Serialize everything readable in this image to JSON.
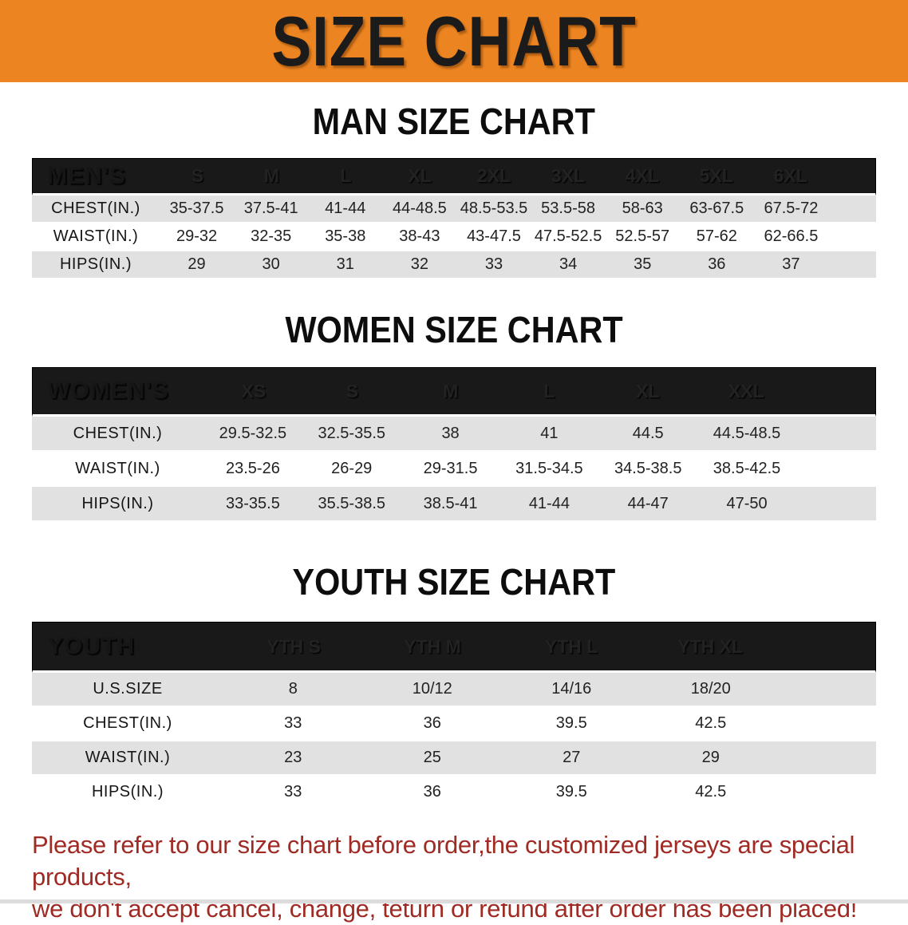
{
  "banner": {
    "title": "SIZE CHART"
  },
  "colors": {
    "banner_bg": "#EC8521",
    "header_bar": "#191919",
    "stripe": "#E1E1E1",
    "disclaimer": "#A02A24"
  },
  "man": {
    "heading": "MAN SIZE CHART",
    "corner_label": "MEN'S",
    "sizes": [
      "S",
      "M",
      "L",
      "XL",
      "2XL",
      "3XL",
      "4XL",
      "5XL",
      "6XL"
    ],
    "rows": [
      {
        "label": "CHEST(IN.)",
        "values": [
          "35-37.5",
          "37.5-41",
          "41-44",
          "44-48.5",
          "48.5-53.5",
          "53.5-58",
          "58-63",
          "63-67.5",
          "67.5-72"
        ]
      },
      {
        "label": "WAIST(IN.)",
        "values": [
          "29-32",
          "32-35",
          "35-38",
          "38-43",
          "43-47.5",
          "47.5-52.5",
          "52.5-57",
          "57-62",
          "62-66.5"
        ]
      },
      {
        "label": "HIPS(IN.)",
        "values": [
          "29",
          "30",
          "31",
          "32",
          "33",
          "34",
          "35",
          "36",
          "37"
        ]
      }
    ]
  },
  "women": {
    "heading": "WOMEN SIZE CHART",
    "corner_label": "WOMEN'S",
    "sizes": [
      "XS",
      "S",
      "M",
      "L",
      "XL",
      "XXL"
    ],
    "rows": [
      {
        "label": "CHEST(IN.)",
        "values": [
          "29.5-32.5",
          "32.5-35.5",
          "38",
          "41",
          "44.5",
          "44.5-48.5"
        ]
      },
      {
        "label": "WAIST(IN.)",
        "values": [
          "23.5-26",
          "26-29",
          "29-31.5",
          "31.5-34.5",
          "34.5-38.5",
          "38.5-42.5"
        ]
      },
      {
        "label": "HIPS(IN.)",
        "values": [
          "33-35.5",
          "35.5-38.5",
          "38.5-41",
          "41-44",
          "44-47",
          "47-50"
        ]
      }
    ]
  },
  "youth": {
    "heading": "YOUTH SIZE CHART",
    "corner_label": "YOUTH",
    "sizes": [
      "YTH S",
      "YTH M",
      "YTH L",
      "YTH XL"
    ],
    "rows": [
      {
        "label": "U.S.SIZE",
        "values": [
          "8",
          "10/12",
          "14/16",
          "18/20"
        ]
      },
      {
        "label": "CHEST(IN.)",
        "values": [
          "33",
          "36",
          "39.5",
          "42.5"
        ]
      },
      {
        "label": "WAIST(IN.)",
        "values": [
          "23",
          "25",
          "27",
          "29"
        ]
      },
      {
        "label": "HIPS(IN.)",
        "values": [
          "33",
          "36",
          "39.5",
          "42.5"
        ]
      }
    ]
  },
  "disclaimer": {
    "line1": "Please refer to our size chart before order,the customized jerseys are special products,",
    "line2": "we don't accept cancel, change, teturn or refund after order has been placed!"
  }
}
